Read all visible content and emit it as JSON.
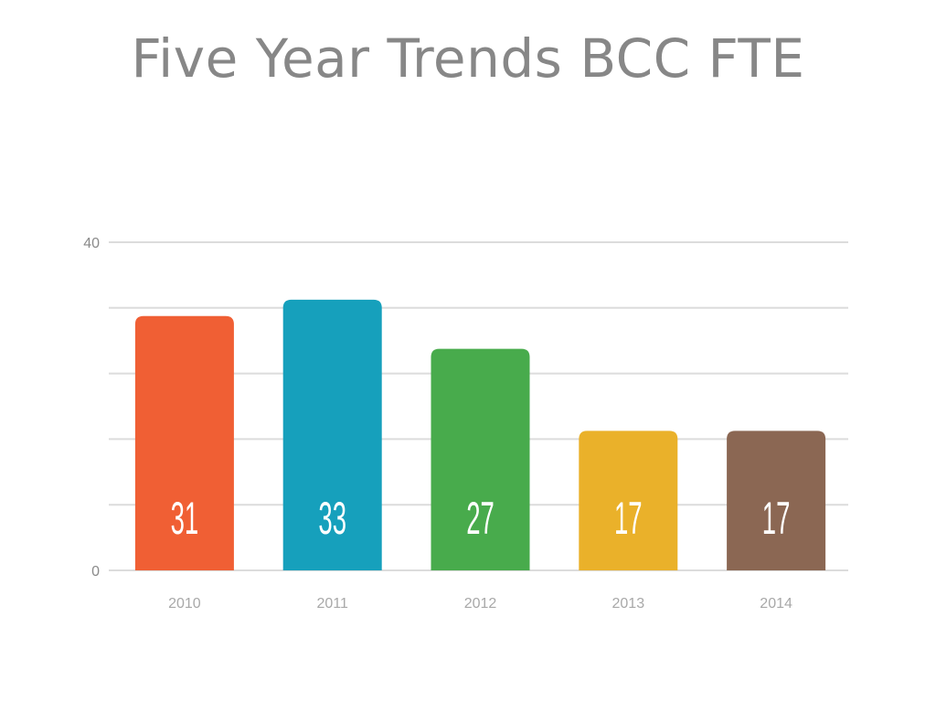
{
  "chart_data": {
    "type": "bar",
    "title": "Five Year Trends BCC FTE",
    "categories": [
      "2010",
      "2011",
      "2012",
      "2013",
      "2014"
    ],
    "values": [
      31,
      33,
      27,
      17,
      17
    ],
    "colors": [
      "#f05f34",
      "#16a0bc",
      "#48ab4c",
      "#eab12a",
      "#8b6753"
    ],
    "ylim": [
      0,
      40
    ],
    "yticks": [
      0,
      40
    ],
    "gridlines": [
      0,
      8,
      16,
      24,
      32,
      40
    ],
    "grid": true,
    "xlabel": "",
    "ylabel": ""
  }
}
